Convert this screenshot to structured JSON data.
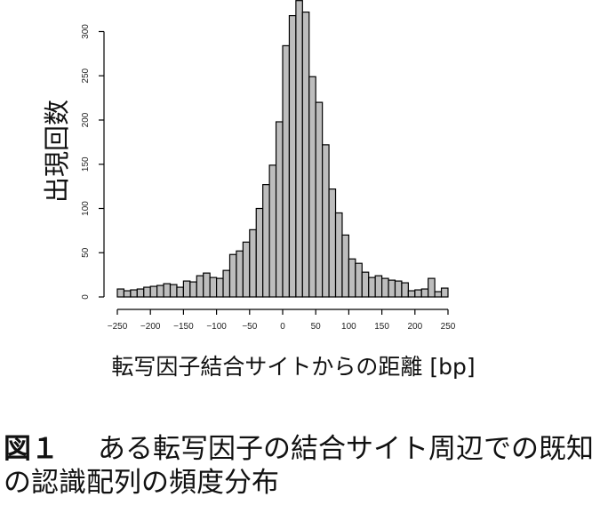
{
  "chart_data": {
    "type": "bar",
    "xlabel": "転写因子結合サイトからの距離 [bp]",
    "ylabel": "出現回数",
    "bin_width": 10,
    "xlim": [
      -250,
      250
    ],
    "ylim": [
      0,
      335
    ],
    "x_ticks": [
      -250,
      -200,
      -150,
      -100,
      -50,
      0,
      50,
      100,
      150,
      200,
      250
    ],
    "y_ticks": [
      0,
      50,
      100,
      150,
      200,
      250,
      300
    ],
    "bins": [
      -250,
      -240,
      -230,
      -220,
      -210,
      -200,
      -190,
      -180,
      -170,
      -160,
      -150,
      -140,
      -130,
      -120,
      -110,
      -100,
      -90,
      -80,
      -70,
      -60,
      -50,
      -40,
      -30,
      -20,
      -10,
      0,
      10,
      20,
      30,
      40,
      50,
      60,
      70,
      80,
      90,
      100,
      110,
      120,
      130,
      140,
      150,
      160,
      170,
      180,
      190,
      200,
      210,
      220,
      230,
      240
    ],
    "values": [
      9,
      7,
      8,
      9,
      11,
      12,
      13,
      15,
      14,
      11,
      18,
      17,
      24,
      27,
      22,
      21,
      30,
      48,
      52,
      62,
      76,
      100,
      127,
      149,
      198,
      284,
      318,
      335,
      322,
      249,
      220,
      172,
      122,
      95,
      70,
      43,
      38,
      28,
      22,
      24,
      21,
      19,
      18,
      16,
      7,
      8,
      9,
      21,
      6,
      10
    ],
    "bar_fill": "#bdbdbd",
    "bar_stroke": "#000000",
    "grid": false,
    "legend": false
  },
  "caption": {
    "label": "図１",
    "text": "ある転写因子の結合サイト周辺での既知の認識配列の頻度分布"
  }
}
